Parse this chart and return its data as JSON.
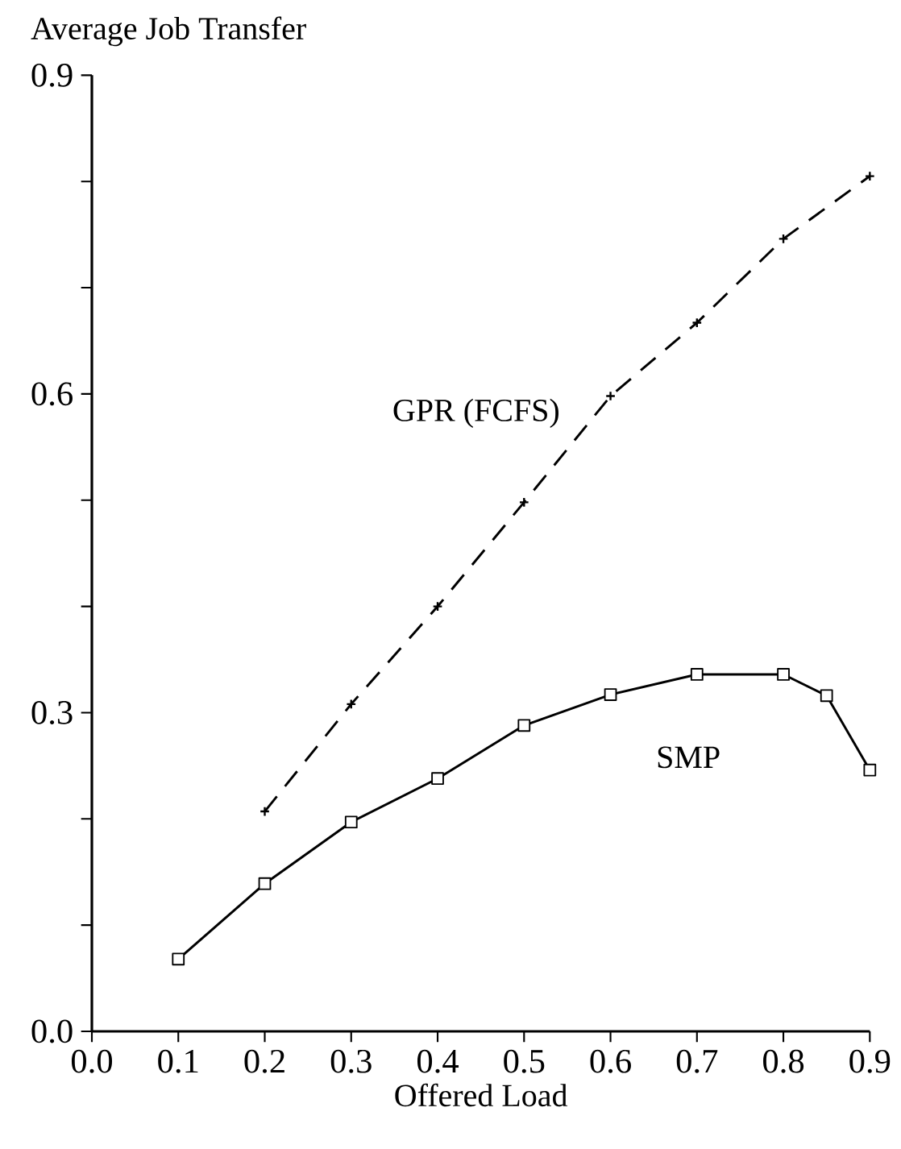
{
  "chart_data": {
    "type": "line",
    "xlabel": "Offered Load",
    "ylabel": "Average Job Transfer",
    "series": [
      {
        "name": "GPR (FCFS)",
        "color": "#000000",
        "marker": "cross",
        "line_style": "dashed",
        "x": [
          0.2,
          0.3,
          0.4,
          0.5,
          0.6,
          0.7,
          0.8,
          0.9
        ],
        "values": [
          0.207,
          0.308,
          0.4,
          0.498,
          0.598,
          0.667,
          0.746,
          0.805
        ]
      },
      {
        "name": "SMP",
        "color": "#000000",
        "marker": "square",
        "line_style": "solid",
        "x": [
          0.1,
          0.2,
          0.3,
          0.4,
          0.5,
          0.6,
          0.7,
          0.8,
          0.85,
          0.9
        ],
        "values": [
          0.068,
          0.139,
          0.197,
          0.238,
          0.288,
          0.317,
          0.336,
          0.336,
          0.316,
          0.246
        ]
      }
    ],
    "xlim": [
      0,
      0.9
    ],
    "ylim": [
      0,
      0.9
    ],
    "xticks": [
      {
        "value": 0,
        "label": "0.0"
      },
      0.1,
      0.2,
      0.3,
      0.4,
      0.5,
      0.6,
      0.7,
      0.8,
      0.9
    ],
    "yticks": [
      {
        "value": 0,
        "label": "0.0"
      },
      {
        "value": 0.1,
        "label": null
      },
      {
        "value": 0.2,
        "label": null
      },
      0.3,
      {
        "value": 0.4,
        "label": null
      },
      {
        "value": 0.5,
        "label": null
      },
      0.6,
      {
        "value": 0.7,
        "label": null
      },
      {
        "value": 0.8,
        "label": null
      },
      0.9
    ],
    "grid": false,
    "legend": false
  }
}
